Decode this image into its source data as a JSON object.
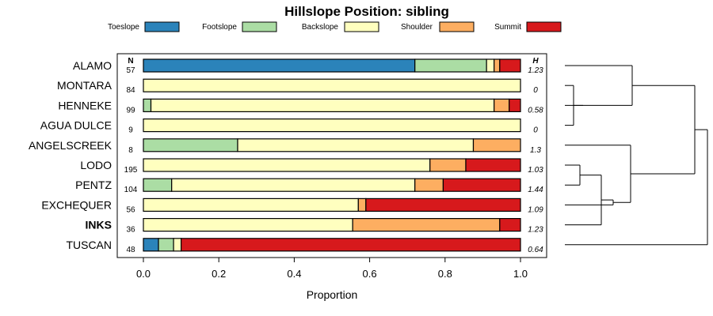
{
  "chart_data": {
    "type": "bar",
    "stacked": true,
    "orientation": "horizontal",
    "title": "Hillslope Position: sibling",
    "xlabel": "Proportion",
    "ylabel": "",
    "xlim": [
      0,
      1
    ],
    "x_ticks": [
      "0.0",
      "0.2",
      "0.4",
      "0.6",
      "0.8",
      "1.0"
    ],
    "legend_position": "top",
    "series": [
      {
        "name": "Toeslope",
        "color": "#2B83BA"
      },
      {
        "name": "Footslope",
        "color": "#ABDDA4"
      },
      {
        "name": "Backslope",
        "color": "#FFFFBF"
      },
      {
        "name": "Shoulder",
        "color": "#FDAE61"
      },
      {
        "name": "Summit",
        "color": "#D7191C"
      }
    ],
    "n_header": "N",
    "h_header": "H",
    "rows": [
      {
        "label": "ALAMO",
        "bold": false,
        "n": "57",
        "h": "1.23",
        "values": [
          0.72,
          0.19,
          0.02,
          0.015,
          0.055
        ]
      },
      {
        "label": "MONTARA",
        "bold": false,
        "n": "84",
        "h": "0",
        "values": [
          0,
          0,
          1.0,
          0,
          0
        ]
      },
      {
        "label": "HENNEKE",
        "bold": false,
        "n": "99",
        "h": "0.58",
        "values": [
          0,
          0.02,
          0.91,
          0.04,
          0.03
        ]
      },
      {
        "label": "AGUA DULCE",
        "bold": false,
        "n": "9",
        "h": "0",
        "values": [
          0,
          0,
          1.0,
          0,
          0
        ]
      },
      {
        "label": "ANGELSCREEK",
        "bold": false,
        "n": "8",
        "h": "1.3",
        "values": [
          0,
          0.25,
          0.625,
          0.125,
          0
        ]
      },
      {
        "label": "LODO",
        "bold": false,
        "n": "195",
        "h": "1.03",
        "values": [
          0,
          0,
          0.76,
          0.095,
          0.145
        ]
      },
      {
        "label": "PENTZ",
        "bold": false,
        "n": "104",
        "h": "1.44",
        "values": [
          0,
          0.075,
          0.645,
          0.075,
          0.205
        ]
      },
      {
        "label": "EXCHEQUER",
        "bold": false,
        "n": "56",
        "h": "1.09",
        "values": [
          0,
          0,
          0.57,
          0.02,
          0.41
        ]
      },
      {
        "label": "INKS",
        "bold": true,
        "n": "36",
        "h": "1.23",
        "values": [
          0,
          0,
          0.555,
          0.39,
          0.055
        ]
      },
      {
        "label": "TUSCAN",
        "bold": false,
        "n": "48",
        "h": "0.64",
        "values": [
          0.04,
          0.04,
          0.02,
          0,
          0.9
        ]
      }
    ]
  }
}
